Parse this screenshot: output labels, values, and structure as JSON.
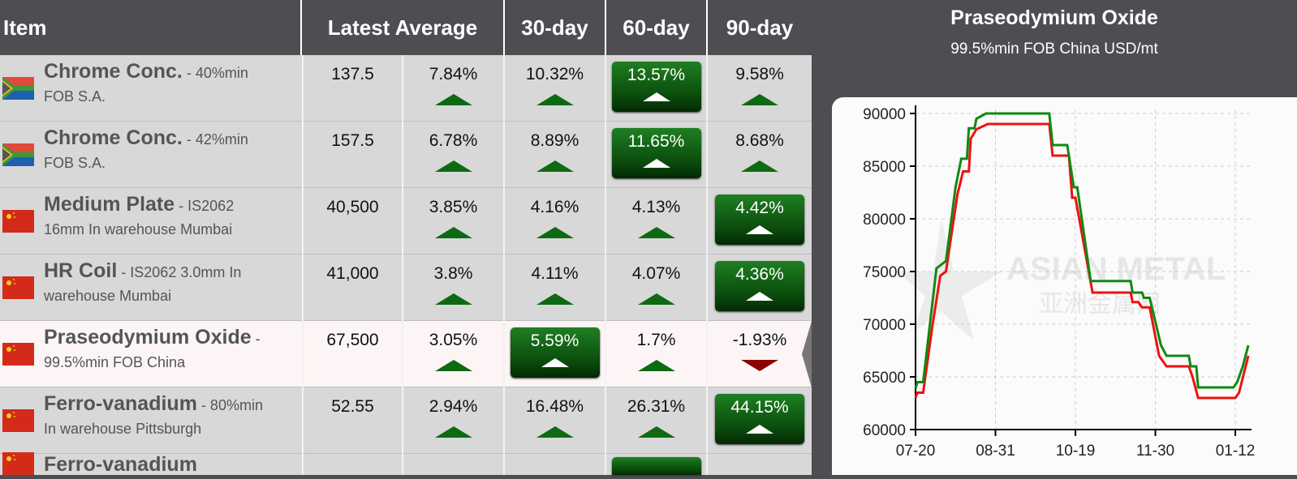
{
  "header": {
    "item": "Item",
    "latest_average": "Latest Average",
    "d30": "30-day",
    "d60": "60-day",
    "d90": "90-day"
  },
  "rows": [
    {
      "flag": "south-africa",
      "name": "Chrome Conc.",
      "spec": " - 40%min",
      "spec2": "FOB S.A.",
      "price": "137.5",
      "cells": [
        {
          "v": "7.84%",
          "dir": "up",
          "hl": false
        },
        {
          "v": "10.32%",
          "dir": "up",
          "hl": false
        },
        {
          "v": "13.57%",
          "dir": "up",
          "hl": true
        },
        {
          "v": "9.58%",
          "dir": "up",
          "hl": false
        }
      ]
    },
    {
      "flag": "south-africa",
      "name": "Chrome Conc.",
      "spec": " - 42%min",
      "spec2": "FOB S.A.",
      "price": "157.5",
      "cells": [
        {
          "v": "6.78%",
          "dir": "up",
          "hl": false
        },
        {
          "v": "8.89%",
          "dir": "up",
          "hl": false
        },
        {
          "v": "11.65%",
          "dir": "up",
          "hl": true
        },
        {
          "v": "8.68%",
          "dir": "up",
          "hl": false
        }
      ]
    },
    {
      "flag": "china",
      "name": "Medium Plate",
      "spec": " - IS2062",
      "spec2": "16mm In warehouse Mumbai",
      "price": "40,500",
      "cells": [
        {
          "v": "3.85%",
          "dir": "up",
          "hl": false
        },
        {
          "v": "4.16%",
          "dir": "up",
          "hl": false
        },
        {
          "v": "4.13%",
          "dir": "up",
          "hl": false
        },
        {
          "v": "4.42%",
          "dir": "up",
          "hl": true
        }
      ]
    },
    {
      "flag": "china",
      "name": "HR Coil",
      "spec": " - IS2062 3.0mm In",
      "spec2": "warehouse Mumbai",
      "price": "41,000",
      "cells": [
        {
          "v": "3.8%",
          "dir": "up",
          "hl": false
        },
        {
          "v": "4.11%",
          "dir": "up",
          "hl": false
        },
        {
          "v": "4.07%",
          "dir": "up",
          "hl": false
        },
        {
          "v": "4.36%",
          "dir": "up",
          "hl": true
        }
      ]
    },
    {
      "flag": "china",
      "name": "Praseodymium Oxide",
      "spec": " -",
      "spec2": "99.5%min FOB China",
      "price": "67,500",
      "selected": true,
      "cells": [
        {
          "v": "3.05%",
          "dir": "up",
          "hl": false
        },
        {
          "v": "5.59%",
          "dir": "up",
          "hl": true
        },
        {
          "v": "1.7%",
          "dir": "up",
          "hl": false
        },
        {
          "v": "-1.93%",
          "dir": "down",
          "hl": false
        }
      ]
    },
    {
      "flag": "china",
      "name": "Ferro-vanadium",
      "spec": " - 80%min",
      "spec2": "In warehouse Pittsburgh",
      "price": "52.55",
      "cells": [
        {
          "v": "2.94%",
          "dir": "up",
          "hl": false
        },
        {
          "v": "16.48%",
          "dir": "up",
          "hl": false
        },
        {
          "v": "26.31%",
          "dir": "up",
          "hl": false
        },
        {
          "v": "44.15%",
          "dir": "up",
          "hl": true
        }
      ]
    },
    {
      "flag": "china",
      "name": "Ferro-vanadium",
      "spec": "",
      "spec2": "",
      "price": "",
      "cells": [
        {
          "v": "",
          "dir": "",
          "hl": false
        },
        {
          "v": "",
          "dir": "",
          "hl": false
        },
        {
          "v": "",
          "dir": "up",
          "hl": true
        },
        {
          "v": "",
          "dir": "",
          "hl": false
        }
      ]
    }
  ],
  "colors": {
    "up": "#0e6a12",
    "down": "#8b0000",
    "header_bg": "#4f4d52",
    "series_red": "#ee1111",
    "series_green": "#118811"
  },
  "chart": {
    "title": "Praseodymium Oxide",
    "subtitle": "99.5%min FOB China USD/mt",
    "watermark": "ASIAN METAL",
    "watermark_cn": "亚洲金属网",
    "chart_data": {
      "type": "line",
      "xticks": [
        "07-20",
        "08-31",
        "10-19",
        "11-30",
        "01-12"
      ],
      "ylim": [
        60000,
        90000
      ],
      "yticks": [
        60000,
        65000,
        70000,
        75000,
        80000,
        85000,
        90000
      ],
      "grid": true,
      "series": [
        {
          "color": "#118811",
          "points": [
            [
              "07-20",
              63900
            ],
            [
              "07-21",
              64500
            ],
            [
              "07-24",
              64500
            ],
            [
              "07-28",
              70700
            ],
            [
              "07-31",
              75300
            ],
            [
              "08-05",
              76000
            ],
            [
              "08-10",
              83000
            ],
            [
              "08-13",
              85700
            ],
            [
              "08-16",
              85700
            ],
            [
              "08-17",
              88600
            ],
            [
              "08-20",
              88600
            ],
            [
              "08-21",
              89500
            ],
            [
              "08-26",
              90000
            ],
            [
              "10-03",
              90000
            ],
            [
              "10-05",
              87000
            ],
            [
              "10-14",
              87000
            ],
            [
              "10-18",
              83000
            ],
            [
              "10-20",
              83000
            ],
            [
              "10-27",
              74100
            ],
            [
              "11-17",
              74100
            ],
            [
              "11-18",
              73000
            ],
            [
              "11-23",
              73000
            ],
            [
              "11-24",
              72500
            ],
            [
              "11-27",
              72500
            ],
            [
              "12-03",
              68000
            ],
            [
              "12-06",
              67000
            ],
            [
              "12-18",
              67000
            ],
            [
              "12-19",
              66000
            ],
            [
              "12-22",
              66000
            ],
            [
              "12-23",
              64000
            ],
            [
              "01-11",
              64000
            ],
            [
              "01-13",
              64500
            ],
            [
              "01-16",
              66000
            ],
            [
              "01-19",
              68000
            ]
          ]
        },
        {
          "color": "#ee1111",
          "points": [
            [
              "07-20",
              63000
            ],
            [
              "07-21",
              63500
            ],
            [
              "07-24",
              63500
            ],
            [
              "07-29",
              70000
            ],
            [
              "08-02",
              74600
            ],
            [
              "08-05",
              75000
            ],
            [
              "08-11",
              82300
            ],
            [
              "08-14",
              84500
            ],
            [
              "08-17",
              84500
            ],
            [
              "08-18",
              87600
            ],
            [
              "08-21",
              88500
            ],
            [
              "08-27",
              89000
            ],
            [
              "10-03",
              89000
            ],
            [
              "10-05",
              86000
            ],
            [
              "10-15",
              86000
            ],
            [
              "10-17",
              82000
            ],
            [
              "10-19",
              82000
            ],
            [
              "10-28",
              73000
            ],
            [
              "11-17",
              73000
            ],
            [
              "11-18",
              72100
            ],
            [
              "11-21",
              72100
            ],
            [
              "11-23",
              71600
            ],
            [
              "11-27",
              71600
            ],
            [
              "12-02",
              67000
            ],
            [
              "12-06",
              66000
            ],
            [
              "12-18",
              66000
            ],
            [
              "12-20",
              65000
            ],
            [
              "12-23",
              63000
            ],
            [
              "01-12",
              63000
            ],
            [
              "01-14",
              63500
            ],
            [
              "01-19",
              67000
            ]
          ]
        }
      ]
    }
  }
}
